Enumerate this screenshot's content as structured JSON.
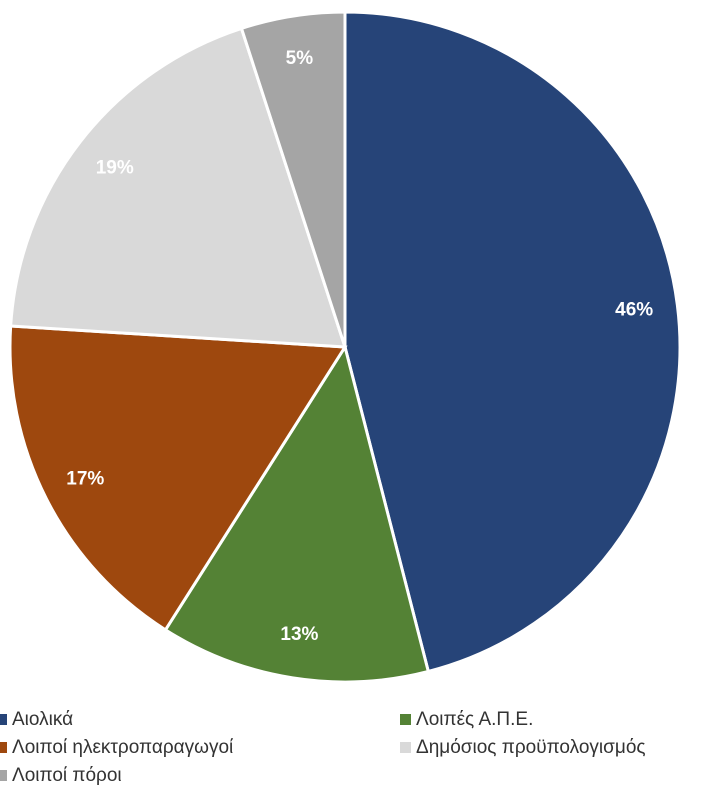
{
  "chart_data": {
    "type": "pie",
    "categories": [
      "Αιολικά",
      "Λοιπές Α.Π.Ε.",
      "Λοιποί ηλεκτροπαραγωγοί",
      "Δημόσιος προϋπολογισμός",
      "Λοιποί πόροι"
    ],
    "values": [
      46,
      13,
      17,
      19,
      5
    ],
    "value_labels": [
      "46%",
      "13%",
      "17%",
      "19%",
      "5%"
    ],
    "colors": [
      "#264478",
      "#548235",
      "#9e480e",
      "#d9d9d9",
      "#a5a5a5"
    ],
    "legend": "bottom"
  }
}
